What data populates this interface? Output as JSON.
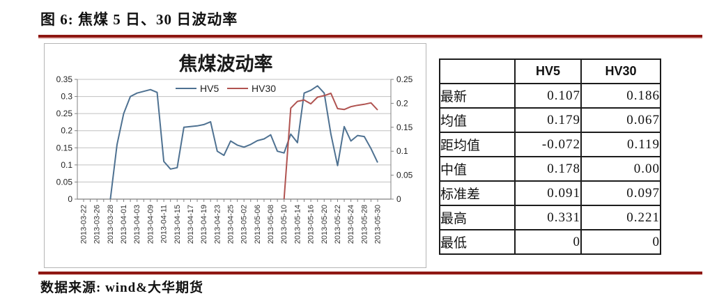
{
  "page": {
    "title": "图 6: 焦煤 5 日、30 日波动率",
    "source": "数据来源: wind&大华期货"
  },
  "colors": {
    "rule": "#8e1712",
    "hv5": "#4e7191",
    "hv30": "#b05350",
    "grid": "#c0c0c0",
    "axis": "#808080"
  },
  "chart_data": {
    "type": "line",
    "title": "焦煤波动率",
    "grid": true,
    "legend_position": "top-inside",
    "categories": [
      "2013-03-22",
      "2013-03-26",
      "2013-03-28",
      "2013-04-01",
      "2013-04-03",
      "2013-04-09",
      "2013-04-11",
      "2013-04-15",
      "2013-04-17",
      "2013-04-19",
      "2013-04-23",
      "2013-04-25",
      "2013-05-02",
      "2013-05-06",
      "2013-05-08",
      "2013-05-10",
      "2013-05-14",
      "2013-05-16",
      "2013-05-20",
      "2013-05-22",
      "2013-05-24",
      "2013-05-28",
      "2013-05-30"
    ],
    "category_every_n_points": 2,
    "left_axis": {
      "min": 0,
      "max": 0.35,
      "ticks": [
        "0",
        "0.05",
        "0.1",
        "0.15",
        "0.2",
        "0.25",
        "0.3",
        "0.35"
      ]
    },
    "right_axis": {
      "min": 0,
      "max": 0.25,
      "ticks": [
        "0",
        "0.05",
        "0.1",
        "0.15",
        "0.2",
        "0.25"
      ]
    },
    "series": [
      {
        "name": "HV5",
        "axis": "left",
        "color": "#4e7191",
        "values": [
          null,
          null,
          null,
          null,
          0,
          0.16,
          0.25,
          0.3,
          0.31,
          0.315,
          0.32,
          0.312,
          0.11,
          0.088,
          0.092,
          0.21,
          0.212,
          0.214,
          0.218,
          0.226,
          0.14,
          0.128,
          0.17,
          0.158,
          0.152,
          0.16,
          0.171,
          0.176,
          0.188,
          0.14,
          0.135,
          0.19,
          0.165,
          0.31,
          0.318,
          0.331,
          0.31,
          0.19,
          0.098,
          0.212,
          0.17,
          0.186,
          0.183,
          0.148,
          0.107
        ]
      },
      {
        "name": "HV30",
        "axis": "right",
        "color": "#b05350",
        "values": [
          null,
          null,
          null,
          null,
          null,
          null,
          null,
          null,
          null,
          null,
          null,
          null,
          null,
          null,
          null,
          null,
          null,
          null,
          null,
          null,
          null,
          null,
          null,
          null,
          null,
          null,
          null,
          null,
          null,
          null,
          0,
          0.19,
          0.204,
          0.207,
          0.199,
          0.213,
          0.216,
          0.221,
          0.189,
          0.187,
          0.193,
          0.196,
          0.198,
          0.201,
          0.186
        ]
      }
    ]
  },
  "table": {
    "columns": [
      "",
      "HV5",
      "HV30"
    ],
    "rows": [
      {
        "label": "最新",
        "hv5": "0.107",
        "hv30": "0.186"
      },
      {
        "label": "均值",
        "hv5": "0.179",
        "hv30": "0.067"
      },
      {
        "label": "距均值",
        "hv5": "-0.072",
        "hv30": "0.119"
      },
      {
        "label": "中值",
        "hv5": "0.178",
        "hv30": "0.00"
      },
      {
        "label": "标准差",
        "hv5": "0.091",
        "hv30": "0.097"
      },
      {
        "label": "最高",
        "hv5": "0.331",
        "hv30": "0.221"
      },
      {
        "label": "最低",
        "hv5": "0",
        "hv30": "0"
      }
    ]
  }
}
